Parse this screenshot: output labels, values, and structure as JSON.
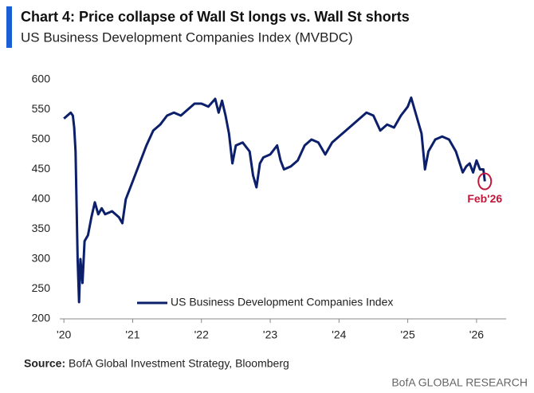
{
  "chart_data": {
    "type": "line",
    "title": "Chart 4: Price collapse of Wall St longs vs. Wall St shorts",
    "subtitle": "US Business Development Companies Index (MVBDC)",
    "series": [
      {
        "name": "US Business Development Companies Index",
        "color": "#0c1f6b",
        "x": [
          2020.0,
          2020.05,
          2020.1,
          2020.13,
          2020.15,
          2020.17,
          2020.2,
          2020.22,
          2020.24,
          2020.27,
          2020.3,
          2020.35,
          2020.4,
          2020.45,
          2020.5,
          2020.55,
          2020.6,
          2020.7,
          2020.8,
          2020.85,
          2020.9,
          2021.0,
          2021.1,
          2021.2,
          2021.3,
          2021.4,
          2021.5,
          2021.6,
          2021.7,
          2021.8,
          2021.9,
          2022.0,
          2022.1,
          2022.2,
          2022.25,
          2022.3,
          2022.35,
          2022.4,
          2022.45,
          2022.5,
          2022.6,
          2022.7,
          2022.75,
          2022.8,
          2022.85,
          2022.9,
          2023.0,
          2023.1,
          2023.15,
          2023.2,
          2023.3,
          2023.4,
          2023.5,
          2023.6,
          2023.7,
          2023.8,
          2023.9,
          2024.0,
          2024.1,
          2024.2,
          2024.3,
          2024.4,
          2024.5,
          2024.6,
          2024.7,
          2024.8,
          2024.9,
          2025.0,
          2025.05,
          2025.1,
          2025.2,
          2025.25,
          2025.3,
          2025.4,
          2025.5,
          2025.6,
          2025.7,
          2025.8,
          2025.85,
          2025.9,
          2025.95,
          2026.0,
          2026.05,
          2026.1,
          2026.12
        ],
        "values": [
          535,
          540,
          545,
          540,
          520,
          480,
          300,
          228,
          300,
          260,
          330,
          340,
          370,
          395,
          375,
          385,
          375,
          380,
          370,
          360,
          400,
          430,
          460,
          490,
          515,
          525,
          540,
          545,
          540,
          550,
          560,
          560,
          555,
          568,
          545,
          565,
          540,
          510,
          460,
          490,
          495,
          480,
          440,
          420,
          460,
          470,
          475,
          490,
          465,
          450,
          455,
          465,
          490,
          500,
          495,
          475,
          495,
          505,
          515,
          525,
          535,
          545,
          540,
          515,
          525,
          520,
          540,
          555,
          570,
          550,
          510,
          450,
          480,
          500,
          505,
          500,
          480,
          445,
          455,
          460,
          445,
          465,
          450,
          450,
          430
        ]
      }
    ],
    "xlim": [
      2019.94,
      2026.43
    ],
    "xticks": [
      {
        "value": 2020,
        "label": "'20"
      },
      {
        "value": 2021,
        "label": "'21"
      },
      {
        "value": 2022,
        "label": "'22"
      },
      {
        "value": 2023,
        "label": "'23"
      },
      {
        "value": 2024,
        "label": "'24"
      },
      {
        "value": 2025,
        "label": "'25"
      },
      {
        "value": 2026,
        "label": "'26"
      }
    ],
    "ylim": [
      200,
      600
    ],
    "yticks": [
      200,
      250,
      300,
      350,
      400,
      450,
      500,
      550,
      600
    ],
    "annotation": "Feb'26",
    "annotation_color": "#c0173a",
    "source_label": "Source:",
    "source": "BofA Global Investment Strategy, Bloomberg",
    "footer": "BofA GLOBAL RESEARCH"
  }
}
